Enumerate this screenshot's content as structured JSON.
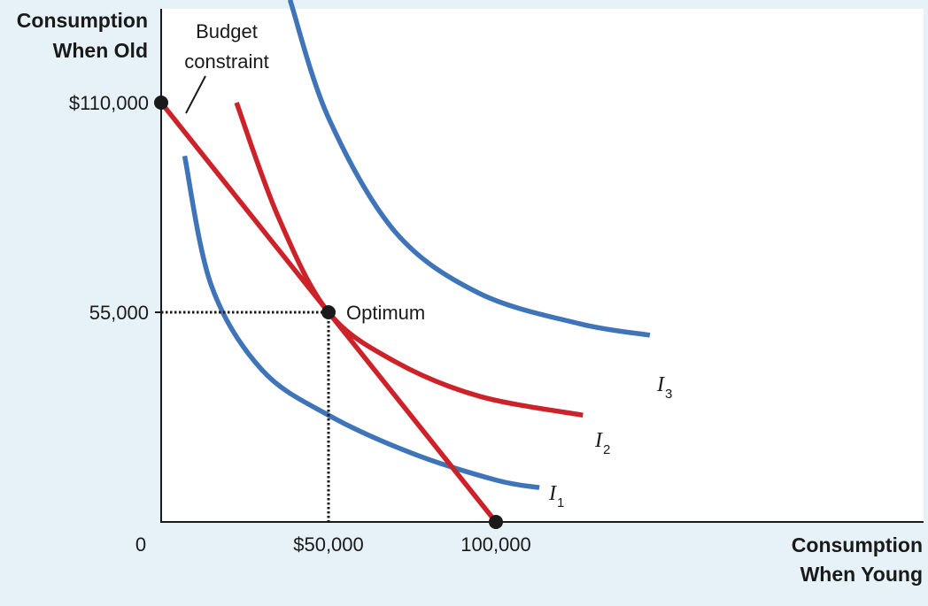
{
  "chart_data": {
    "type": "line",
    "xlabel": [
      "Consumption",
      "When Young"
    ],
    "ylabel": [
      "Consumption",
      "When Old"
    ],
    "xlim": [
      0,
      130000
    ],
    "ylim": [
      0,
      125000
    ],
    "x_ticks": [
      {
        "value": 0,
        "label": "0"
      },
      {
        "value": 50000,
        "label": "$50,000"
      },
      {
        "value": 100000,
        "label": "100,000"
      }
    ],
    "y_ticks": [
      {
        "value": 110000,
        "label": "$110,000"
      },
      {
        "value": 55000,
        "label": "55,000"
      }
    ],
    "budget_constraint": {
      "label": [
        "Budget",
        "constraint"
      ],
      "color": "#cc2229",
      "points": [
        [
          0,
          110000
        ],
        [
          100000,
          0
        ]
      ]
    },
    "indifference_curves": [
      {
        "name": "I",
        "subscript": "1",
        "color": "#3f74b8",
        "points": [
          [
            7000,
            96000
          ],
          [
            15000,
            62000
          ],
          [
            30000,
            40000
          ],
          [
            50000,
            28000
          ],
          [
            75000,
            18000
          ],
          [
            100000,
            11000
          ],
          [
            113000,
            9000
          ]
        ]
      },
      {
        "name": "I",
        "subscript": "2",
        "color": "#cc2229",
        "points": [
          [
            22500,
            110000
          ],
          [
            35000,
            80000
          ],
          [
            50000,
            55000
          ],
          [
            70000,
            42000
          ],
          [
            95000,
            33000
          ],
          [
            126000,
            28000
          ]
        ]
      },
      {
        "name": "I",
        "subscript": "3",
        "color": "#3f74b8",
        "points": [
          [
            38500,
            137000
          ],
          [
            50000,
            106000
          ],
          [
            70000,
            76000
          ],
          [
            95000,
            60000
          ],
          [
            125000,
            52000
          ],
          [
            146000,
            49000
          ]
        ]
      }
    ],
    "optimum": {
      "label": "Optimum",
      "x": 50000,
      "y": 55000
    },
    "marked_points": [
      [
        0,
        110000
      ],
      [
        50000,
        55000
      ],
      [
        100000,
        0
      ]
    ],
    "grid": false
  }
}
